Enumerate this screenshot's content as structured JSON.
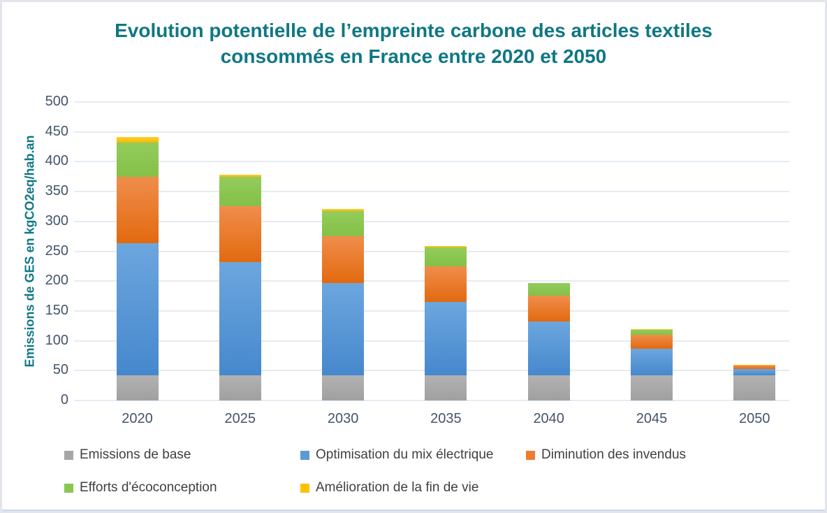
{
  "colors": {
    "title": "#0F7785",
    "axis_tick_text": "#44546A",
    "legend_text": "#404040",
    "gridline": "#E6EBF2",
    "canvas_border": "#E3E4EC",
    "canvas_border_bottom": "#CBD9EA",
    "background": "#FFFFFF"
  },
  "chart_data": {
    "type": "bar",
    "stacked": true,
    "title": "Evolution potentielle de l’empreinte carbone des articles textiles consommés en France entre 2020 et 2050",
    "ylabel": "Emissions de GES en kgCO2eq/hab.an",
    "xlabel": "",
    "categories": [
      "2020",
      "2025",
      "2030",
      "2035",
      "2040",
      "2045",
      "2050"
    ],
    "series": [
      {
        "name": "Emissions de base",
        "color": "#A6A6A6",
        "color_top": "#B2B2B2",
        "color_bottom": "#A0A0A0",
        "values": [
          42,
          42,
          42,
          42,
          42,
          42,
          42
        ]
      },
      {
        "name": "Optimisation du mix électrique",
        "color": "#5B9BD5",
        "color_top": "#6CA6DE",
        "color_bottom": "#4688CD",
        "values": [
          222,
          190,
          155,
          123,
          90,
          45,
          11
        ]
      },
      {
        "name": "Diminution des invendus",
        "color": "#ED7D31",
        "color_top": "#F08D4C",
        "color_bottom": "#E26A0F",
        "values": [
          111,
          93,
          78,
          60,
          44,
          23,
          5
        ]
      },
      {
        "name": "Efforts d'écoconception",
        "color": "#8CC652",
        "color_top": "#93CC5B",
        "color_bottom": "#85C049",
        "values": [
          57,
          50,
          42,
          31,
          21,
          8,
          0
        ]
      },
      {
        "name": "Amélioration de la fin de vie",
        "color": "#FFC000",
        "color_top": "#FFCE33",
        "color_bottom": "#F6B900",
        "values": [
          10,
          3,
          4,
          3,
          0,
          2,
          2
        ]
      }
    ],
    "bar_totals": [
      442,
      378,
      321,
      259,
      197,
      120,
      60
    ],
    "ylim": [
      0,
      500
    ],
    "ytick_step": 50,
    "yticks": [
      0,
      50,
      100,
      150,
      200,
      250,
      300,
      350,
      400,
      450,
      500
    ],
    "grid": true,
    "legend_position": "bottom",
    "legend_rows": [
      [
        0,
        1,
        2
      ],
      [
        3,
        4
      ]
    ]
  }
}
